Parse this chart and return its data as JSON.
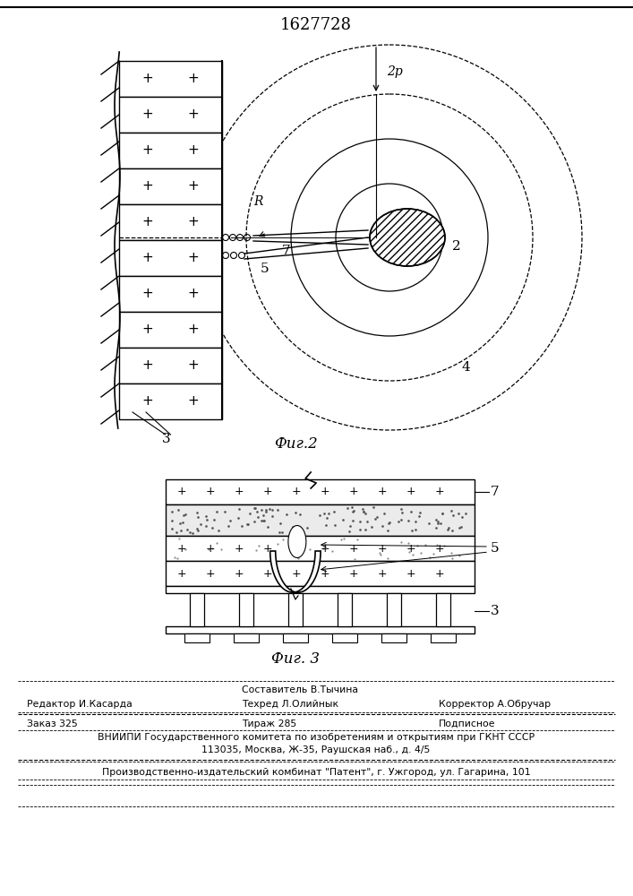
{
  "title": "1627728",
  "fig2_label": "Фиг.2",
  "fig3_label": "Фиг. 3",
  "background_color": "#ffffff",
  "line_color": "#000000",
  "footer_line1_center": "Составитель В.Тычина",
  "footer_line1_center2": "Техред Л.Олийнык",
  "footer_line1_left": "Редактор И.Касарда",
  "footer_line1_right": "Корректор А.Обручар",
  "footer_line2_1": "Заказ 325",
  "footer_line2_2": "Тираж 285",
  "footer_line2_3": "Подписное",
  "footer_line3": "ВНИИПИ Государственного комитета по изобретениям и открытиям при ГКНТ СССР",
  "footer_line4": "113035, Москва, Ж-35, Раушская наб., д. 4/5",
  "footer_line5": "Производственно-издательский комбинат \"Патент\", г. Ужгород, ул. Гагарина, 101"
}
